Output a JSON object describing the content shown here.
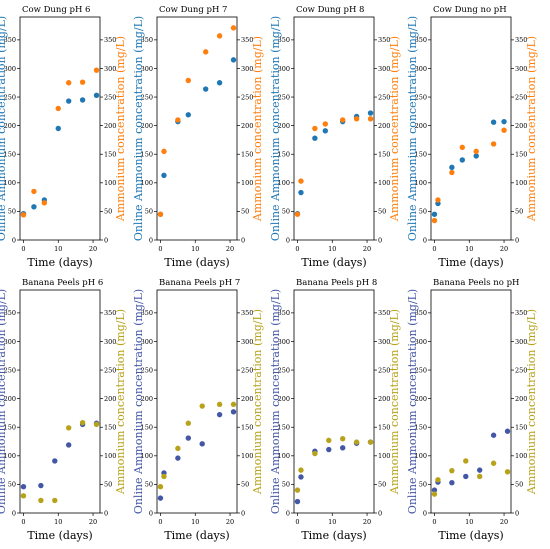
{
  "colors": {
    "online_blue": "#1f77b4",
    "orange": "#ff7f0e",
    "banana_blue": "#4457a5",
    "olive": "#b8a21a"
  },
  "labels": {
    "xlabel": "Time (days)",
    "ylabel_left": "Online Ammonium concentration (mg/L)",
    "ylabel_right": "Ammonium concentration (mg/L)"
  },
  "chart_data": [
    {
      "type": "scatter",
      "title": "Cow Dung pH 6",
      "xlabel": "Time (days)",
      "ylabel_left": "Online Ammonium concentration (mg/L)",
      "ylabel_right": "Ammonium concentration (mg/L)",
      "xlim": [
        -1,
        22
      ],
      "ylim": [
        0,
        390
      ],
      "xticks": [
        0,
        10,
        20
      ],
      "yticks": [
        0,
        50,
        100,
        150,
        200,
        250,
        300,
        350
      ],
      "series": [
        {
          "axis": "left",
          "color": "#1f77b4",
          "points": [
            [
              0,
              46
            ],
            [
              3,
              58
            ],
            [
              6,
              70
            ],
            [
              10,
              195
            ],
            [
              13,
              243
            ],
            [
              17,
              245
            ],
            [
              21,
              253
            ]
          ]
        },
        {
          "axis": "right",
          "color": "#ff7f0e",
          "points": [
            [
              0,
              44
            ],
            [
              3,
              85
            ],
            [
              6,
              65
            ],
            [
              10,
              230
            ],
            [
              13,
              275
            ],
            [
              17,
              276
            ],
            [
              21,
              297
            ]
          ]
        }
      ]
    },
    {
      "type": "scatter",
      "title": "Cow Dung pH 7",
      "xlabel": "Time (days)",
      "ylabel_left": "Online Ammonium concentration (mg/L)",
      "ylabel_right": "Ammonium concentration (mg/L)",
      "xlim": [
        -1,
        22
      ],
      "ylim": [
        0,
        390
      ],
      "xticks": [
        0,
        10,
        20
      ],
      "yticks": [
        0,
        50,
        100,
        150,
        200,
        250,
        300,
        350
      ],
      "series": [
        {
          "axis": "left",
          "color": "#1f77b4",
          "points": [
            [
              0,
              45
            ],
            [
              1,
              113
            ],
            [
              5,
              207
            ],
            [
              8,
              219
            ],
            [
              13,
              264
            ],
            [
              17,
              275
            ],
            [
              21,
              315
            ]
          ]
        },
        {
          "axis": "right",
          "color": "#ff7f0e",
          "points": [
            [
              0,
              45
            ],
            [
              1,
              155
            ],
            [
              5,
              210
            ],
            [
              8,
              279
            ],
            [
              13,
              329
            ],
            [
              17,
              357
            ],
            [
              21,
              371
            ]
          ]
        }
      ]
    },
    {
      "type": "scatter",
      "title": "Cow Dung pH 8",
      "xlabel": "Time (days)",
      "ylabel_left": "Online Ammonium concentration (mg/L)",
      "ylabel_right": "Ammonium concentration (mg/L)",
      "xlim": [
        -1,
        22
      ],
      "ylim": [
        0,
        390
      ],
      "xticks": [
        0,
        10,
        20
      ],
      "yticks": [
        0,
        50,
        100,
        150,
        200,
        250,
        300,
        350
      ],
      "series": [
        {
          "axis": "left",
          "color": "#1f77b4",
          "points": [
            [
              0,
              46
            ],
            [
              1,
              83
            ],
            [
              5,
              178
            ],
            [
              8,
              191
            ],
            [
              13,
              207
            ],
            [
              17,
              216
            ],
            [
              21,
              222
            ]
          ]
        },
        {
          "axis": "right",
          "color": "#ff7f0e",
          "points": [
            [
              0,
              45
            ],
            [
              1,
              103
            ],
            [
              5,
              195
            ],
            [
              8,
              203
            ],
            [
              13,
              210
            ],
            [
              17,
              212
            ],
            [
              21,
              212
            ]
          ]
        }
      ]
    },
    {
      "type": "scatter",
      "title": "Cow Dung no pH",
      "xlabel": "Time (days)",
      "ylabel_left": "Online Ammonium concentration (mg/L)",
      "ylabel_right": "Ammonium concentration (mg/L)",
      "xlim": [
        -1,
        22
      ],
      "ylim": [
        0,
        390
      ],
      "xticks": [
        0,
        10,
        20
      ],
      "yticks": [
        0,
        50,
        100,
        150,
        200,
        250,
        300,
        350
      ],
      "series": [
        {
          "axis": "left",
          "color": "#1f77b4",
          "points": [
            [
              0,
              45
            ],
            [
              1,
              64
            ],
            [
              5,
              127
            ],
            [
              8,
              140
            ],
            [
              12,
              147
            ],
            [
              17,
              206
            ],
            [
              20,
              207
            ]
          ]
        },
        {
          "axis": "right",
          "color": "#ff7f0e",
          "points": [
            [
              0,
              34
            ],
            [
              1,
              70
            ],
            [
              5,
              118
            ],
            [
              8,
              162
            ],
            [
              12,
              155
            ],
            [
              17,
              168
            ],
            [
              20,
              192
            ]
          ]
        }
      ]
    },
    {
      "type": "scatter",
      "title": "Banana Peels pH 6",
      "xlabel": "Time (days)",
      "ylabel_left": "Online Ammonium concentration (mg/L)",
      "ylabel_right": "Ammonium concentration (mg/L)",
      "xlim": [
        -1,
        22
      ],
      "ylim": [
        0,
        390
      ],
      "xticks": [
        0,
        10,
        20
      ],
      "yticks": [
        0,
        50,
        100,
        150,
        200,
        250,
        300,
        350
      ],
      "series": [
        {
          "axis": "left",
          "color": "#4457a5",
          "points": [
            [
              0,
              46
            ],
            [
              5,
              48
            ],
            [
              9,
              91
            ],
            [
              13,
              119
            ],
            [
              17,
              155
            ],
            [
              21,
              157
            ]
          ]
        },
        {
          "axis": "right",
          "color": "#b8a21a",
          "points": [
            [
              0,
              30
            ],
            [
              5,
              22
            ],
            [
              9,
              22
            ],
            [
              13,
              149
            ],
            [
              17,
              158
            ],
            [
              21,
              155
            ]
          ]
        }
      ]
    },
    {
      "type": "scatter",
      "title": "Banana Peels pH 7",
      "xlabel": "Time (days)",
      "ylabel_left": "Online Ammonium concentration (mg/L)",
      "ylabel_right": "Ammonium concentration (mg/L)",
      "xlim": [
        -1,
        22
      ],
      "ylim": [
        0,
        390
      ],
      "xticks": [
        0,
        10,
        20
      ],
      "yticks": [
        0,
        50,
        100,
        150,
        200,
        250,
        300,
        350
      ],
      "series": [
        {
          "axis": "left",
          "color": "#4457a5",
          "points": [
            [
              0,
              26
            ],
            [
              1,
              70
            ],
            [
              5,
              96
            ],
            [
              8,
              131
            ],
            [
              12,
              121
            ],
            [
              17,
              172
            ],
            [
              21,
              177
            ]
          ]
        },
        {
          "axis": "right",
          "color": "#b8a21a",
          "points": [
            [
              0,
              46
            ],
            [
              1,
              64
            ],
            [
              5,
              113
            ],
            [
              8,
              157
            ],
            [
              12,
              187
            ],
            [
              17,
              190
            ],
            [
              21,
              190
            ]
          ]
        }
      ]
    },
    {
      "type": "scatter",
      "title": "Banana Peels pH 8",
      "xlabel": "Time (days)",
      "ylabel_left": "Online Ammonium concentration (mg/L)",
      "ylabel_right": "Ammonium concentration (mg/L)",
      "xlim": [
        -1,
        22
      ],
      "ylim": [
        0,
        390
      ],
      "xticks": [
        0,
        10,
        20
      ],
      "yticks": [
        0,
        50,
        100,
        150,
        200,
        250,
        300,
        350
      ],
      "series": [
        {
          "axis": "left",
          "color": "#4457a5",
          "points": [
            [
              0,
              20
            ],
            [
              1,
              63
            ],
            [
              5,
              108
            ],
            [
              9,
              111
            ],
            [
              13,
              114
            ],
            [
              17,
              122
            ],
            [
              21,
              124
            ]
          ]
        },
        {
          "axis": "right",
          "color": "#b8a21a",
          "points": [
            [
              0,
              40
            ],
            [
              1,
              75
            ],
            [
              5,
              104
            ],
            [
              9,
              127
            ],
            [
              13,
              130
            ],
            [
              17,
              124
            ],
            [
              21,
              124
            ]
          ]
        }
      ]
    },
    {
      "type": "scatter",
      "title": "Banana Peels no pH",
      "xlabel": "Time (days)",
      "ylabel_left": "Online Ammonium concentration (mg/L)",
      "ylabel_right": "Ammonium concentration (mg/L)",
      "xlim": [
        -1,
        22
      ],
      "ylim": [
        0,
        390
      ],
      "xticks": [
        0,
        10,
        20
      ],
      "yticks": [
        0,
        50,
        100,
        150,
        200,
        250,
        300,
        350
      ],
      "series": [
        {
          "axis": "left",
          "color": "#4457a5",
          "points": [
            [
              0,
              40
            ],
            [
              1,
              54
            ],
            [
              5,
              53
            ],
            [
              9,
              64
            ],
            [
              13,
              75
            ],
            [
              17,
              136
            ],
            [
              21,
              143
            ]
          ]
        },
        {
          "axis": "right",
          "color": "#b8a21a",
          "points": [
            [
              0,
              33
            ],
            [
              1,
              58
            ],
            [
              5,
              74
            ],
            [
              9,
              91
            ],
            [
              13,
              64
            ],
            [
              17,
              87
            ],
            [
              21,
              72
            ]
          ]
        }
      ]
    }
  ]
}
